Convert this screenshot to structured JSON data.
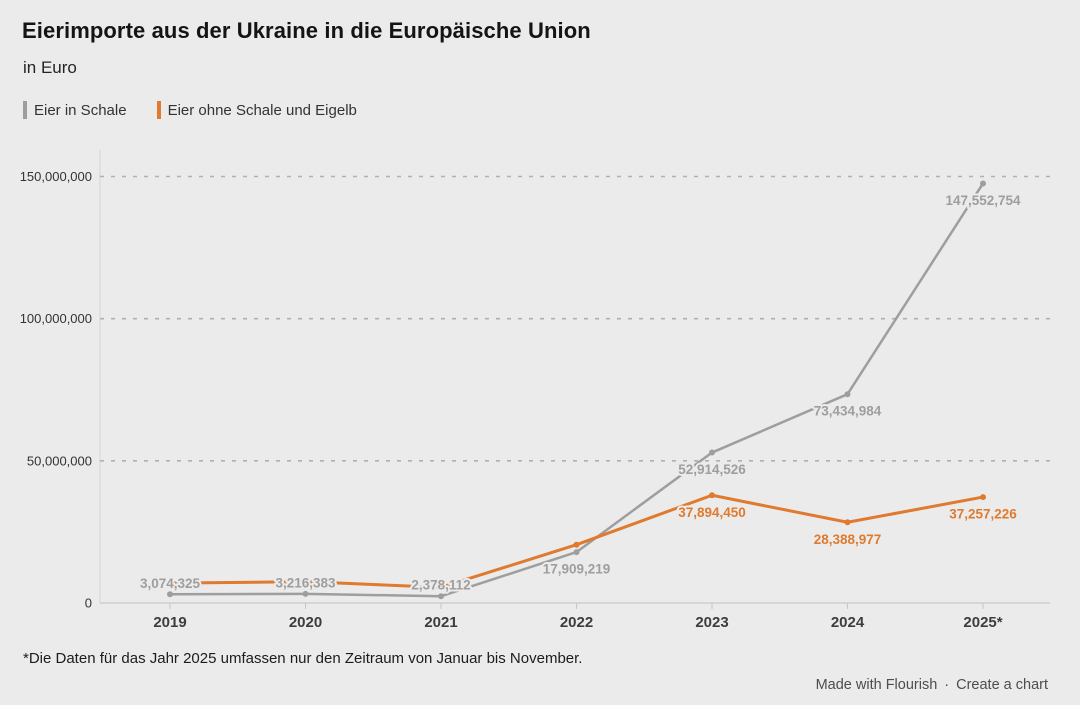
{
  "chart_data": {
    "type": "line",
    "title": "Eierimporte aus der Ukraine in die Europäische Union",
    "subtitle": "in Euro",
    "x": [
      "2019",
      "2020",
      "2021",
      "2022",
      "2023",
      "2024",
      "2025*"
    ],
    "ylim": [
      0,
      150000000
    ],
    "yticks": [
      0,
      50000000,
      100000000,
      150000000
    ],
    "ytick_labels": [
      "0",
      "50,000,000",
      "100,000,000",
      "150,000,000"
    ],
    "grid": "dashed horizontal gridlines",
    "legend_position": "top-left",
    "series": [
      {
        "name": "Eier in Schale",
        "color": "#9e9e9e",
        "values": [
          3074325,
          3216383,
          2378112,
          17909219,
          52914526,
          73434984,
          147552754
        ],
        "labels": [
          "3,074,325",
          "3,216,383",
          "2,378,112",
          "17,909,219",
          "52,914,526",
          "73,434,984",
          "147,552,754"
        ]
      },
      {
        "name": "Eier ohne Schale und Eigelb",
        "color": "#df7a2e",
        "values": [
          7000000,
          7500000,
          5500000,
          20500000,
          37894450,
          28388977,
          37257226
        ],
        "labels": [
          null,
          null,
          null,
          null,
          "37,894,450",
          "28,388,977",
          "37,257,226"
        ]
      }
    ]
  },
  "footer": {
    "note": "*Die Daten für das Jahr 2025 umfassen nur den Zeitraum von Januar bis November.",
    "attribution": {
      "made_with": "Made with Flourish",
      "separator": "·",
      "create": "Create a chart"
    }
  }
}
